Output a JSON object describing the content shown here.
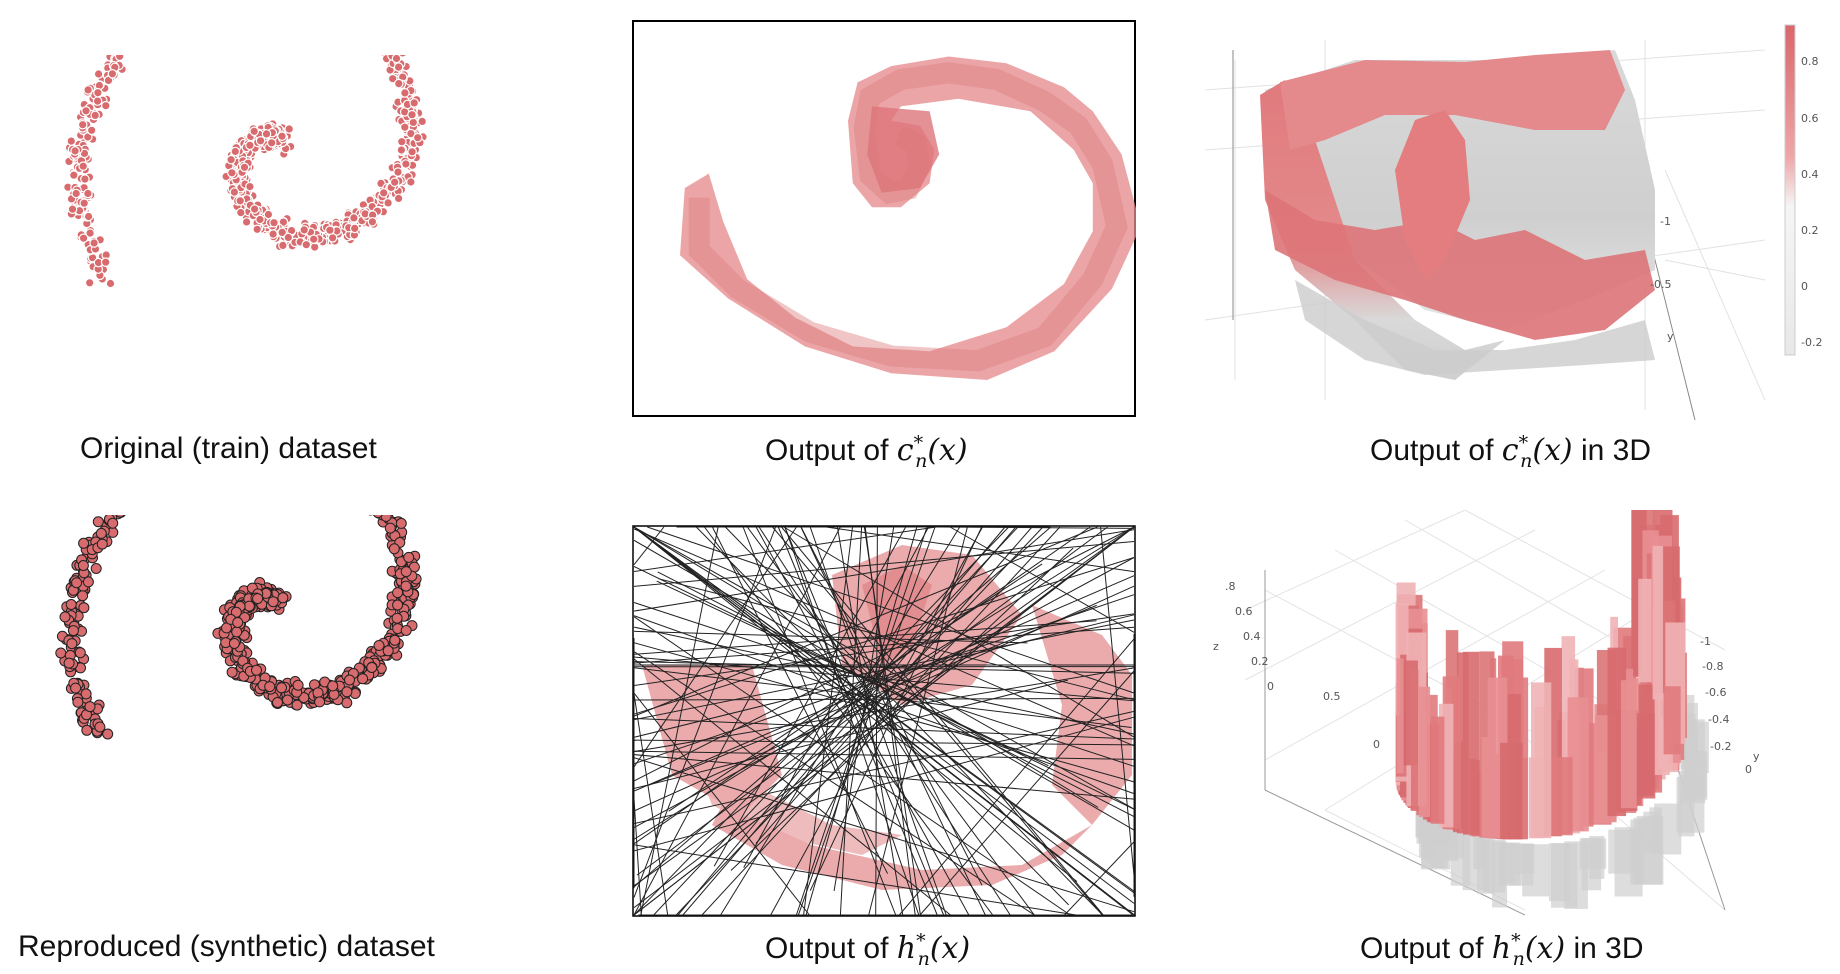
{
  "captions": {
    "original": "Original (train) dataset",
    "reproduced": "Reproduced (synthetic) dataset",
    "c_output_prefix": "Output of ",
    "c_output_func": "c",
    "c_output_sub": "n",
    "c_output_sup": "*",
    "c_output_arg": "(x)",
    "h_output_prefix": "Output of ",
    "h_output_func": "h",
    "h_output_sub": "n",
    "h_output_sup": "*",
    "h_output_arg": "(x)",
    "in3d": " in 3D"
  },
  "colorbar": {
    "ticks": [
      "0.8",
      "0.6",
      "0.4",
      "0.2",
      "0",
      "-0.2"
    ]
  },
  "axes3d_top": {
    "y_ticks": [
      "-1",
      "-0.5"
    ],
    "y_label": "y"
  },
  "axes3d_bottom": {
    "z_ticks": [
      ".8",
      "0.6",
      "0.4",
      "0.2",
      "0"
    ],
    "z_label": "z",
    "x_ticks": [
      "0.5",
      "0"
    ],
    "y_ticks": [
      "-1",
      "-0.8",
      "-0.6",
      "-0.4",
      "-0.2",
      "0"
    ],
    "y_label": "y"
  },
  "colors": {
    "point_fill": "#d86b6e",
    "point_stroke_synthetic": "#222222",
    "surface": "#e07a7d",
    "shadow": "#cfcfcf"
  }
}
